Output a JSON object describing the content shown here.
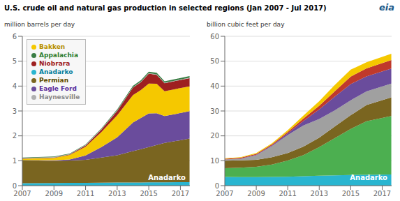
{
  "chart_data": [
    {
      "type": "area",
      "stacked": true,
      "grid": true,
      "title": "U.S. crude oil and natural gas production in selected regions (Jan 2007 - Jul 2017)",
      "ylabel": "million barrels per day",
      "xlim": [
        2007,
        2017.6
      ],
      "xticks": [
        2007,
        2009,
        2011,
        2013,
        2015,
        2017
      ],
      "ylim": [
        0,
        6
      ],
      "yticks": [
        0,
        1,
        2,
        3,
        4,
        5,
        6
      ],
      "x": [
        2007,
        2009,
        2010,
        2011,
        2012,
        2013,
        2014,
        2014.5,
        2015,
        2015.5,
        2016,
        2017.58
      ],
      "series": [
        {
          "name": "Anadarko",
          "color": "#29b5d0",
          "values": [
            0.1,
            0.1076,
            0.1113,
            0.1151,
            0.1189,
            0.1227,
            0.1265,
            0.1284,
            0.1302,
            0.1321,
            0.134,
            0.14
          ]
        },
        {
          "name": "Permian",
          "color": "#7a6520",
          "values": [
            0.93,
            0.88,
            0.9,
            0.92,
            1.01,
            1.1,
            1.26,
            1.34,
            1.42,
            1.5,
            1.58,
            1.75
          ]
        },
        {
          "name": "Eagle Ford",
          "color": "#6a4c9c",
          "values": [
            0,
            0.0267,
            0.04,
            0.18,
            0.42,
            0.72,
            1.15,
            1.25,
            1.35,
            1.28,
            1.08,
            1.1
          ]
        },
        {
          "name": "Bakken",
          "color": "#f5c800",
          "values": [
            0.05,
            0.1,
            0.18,
            0.35,
            0.6,
            0.88,
            1.1,
            1.12,
            1.2,
            1.18,
            1.0,
            1.0
          ]
        },
        {
          "name": "Niobrara",
          "color": "#9e2020",
          "values": [
            0.01,
            0.0167,
            0.02,
            0.05,
            0.1,
            0.18,
            0.3,
            0.32,
            0.4,
            0.36,
            0.32,
            0.33
          ]
        },
        {
          "name": "Haynesville",
          "color": "#b0b0b0",
          "values": [
            0.02,
            0.02,
            0.02,
            0.02,
            0.02,
            0.02,
            0.02,
            0.02,
            0.02,
            0.02,
            0.02,
            0.02
          ]
        },
        {
          "name": "Appalachia",
          "color": "#3a7d44",
          "values": [
            0.02,
            0.02,
            0.02,
            0.02,
            0.03,
            0.04,
            0.05,
            0.055,
            0.06,
            0.06,
            0.06,
            0.06
          ]
        }
      ],
      "annotations": [
        {
          "text": "Anadarko",
          "color": "white"
        }
      ],
      "inset_labels": [
        {
          "text": "Bakken",
          "color": "#b89000"
        },
        {
          "text": "Appalachia",
          "color": "#2e7d32"
        },
        {
          "text": "Niobrara",
          "color": "#9e2020"
        },
        {
          "text": "Anadarko",
          "color": "#007fa0"
        },
        {
          "text": "Permian",
          "color": "#5a4a00"
        },
        {
          "text": "Eagle Ford",
          "color": "#5a2d9c"
        },
        {
          "text": "Haynesville",
          "color": "#888888"
        }
      ]
    },
    {
      "type": "area",
      "stacked": true,
      "grid": true,
      "ylabel": "billion cubic feet per day",
      "xlim": [
        2007,
        2017.6
      ],
      "xticks": [
        2007,
        2009,
        2011,
        2013,
        2015,
        2017
      ],
      "ylim": [
        0,
        60
      ],
      "yticks": [
        0,
        10,
        20,
        30,
        40,
        50,
        60
      ],
      "x": [
        2007,
        2008,
        2009,
        2010,
        2011,
        2012,
        2013,
        2014,
        2015,
        2016,
        2017.58
      ],
      "series": [
        {
          "name": "Anadarko",
          "color": "#29b5d0",
          "values": [
            3.5,
            3.45,
            3.4,
            3.5,
            3.6,
            3.8,
            4.0,
            4.15,
            4.3,
            4.3775,
            4.5
          ]
        },
        {
          "name": "Appalachia",
          "color": "#4caf50",
          "values": [
            3.5,
            3.8,
            4.2,
            5.0,
            6.5,
            8.5,
            11.5,
            15.0,
            18.5,
            21.5,
            23.5
          ]
        },
        {
          "name": "Permian",
          "color": "#7a6520",
          "values": [
            3.0,
            2.9,
            2.8,
            2.9,
            3.0,
            3.4,
            3.8,
            4.65,
            5.5,
            6.5,
            7.5
          ]
        },
        {
          "name": "Haynesville",
          "color": "#a0a0a0",
          "values": [
            0.5,
            0.6,
            1.8,
            4.5,
            7.2,
            8.5,
            7.5,
            6.5,
            6.0,
            5.5,
            5.5
          ]
        },
        {
          "name": "Eagle Ford",
          "color": "#6a4c9c",
          "values": [
            0,
            0.1,
            0.2,
            0.3,
            0.7,
            1.8,
            3.8,
            5.5,
            6.5,
            6.0,
            6.0
          ]
        },
        {
          "name": "Niobrara",
          "color": "#c0392b",
          "values": [
            0.3,
            0.3333,
            0.3667,
            0.4,
            0.6,
            1.0,
            1.5,
            2.2,
            3.0,
            3.2,
            3.5
          ]
        },
        {
          "name": "Bakken",
          "color": "#f5c800",
          "values": [
            0.2,
            0.2667,
            0.3333,
            0.4,
            0.7,
            1.2,
            1.8,
            2.5,
            2.8,
            2.5,
            2.5
          ]
        }
      ],
      "annotations": [
        {
          "text": "Anadarko",
          "color": "white"
        }
      ],
      "corner_text": {
        "text": "eia",
        "color": "#1a5a8a"
      }
    }
  ]
}
